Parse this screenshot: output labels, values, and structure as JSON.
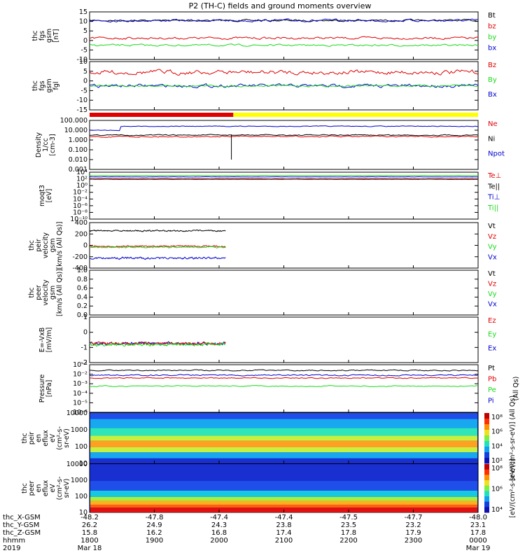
{
  "title": "P2 (TH-C) fields and ground moments overview",
  "colors": {
    "black": "#000000",
    "red": "#e00000",
    "green": "#19d919",
    "blue": "#0000d0"
  },
  "chart_data": [
    {
      "type": "line",
      "ylabel": [
        "thc",
        "fgs",
        "gsm",
        "[nT]"
      ],
      "ylim": [
        -10,
        15
      ],
      "yticks": [
        15,
        10,
        5,
        0,
        -5,
        -10
      ],
      "series": [
        {
          "name": "Bt",
          "color": "#000000",
          "level": 8,
          "noise": 1.2
        },
        {
          "name": "bz",
          "color": "#e00000",
          "level": 1,
          "noise": 1.5
        },
        {
          "name": "by",
          "color": "#19d919",
          "level": -3,
          "noise": 1.0
        },
        {
          "name": "bx",
          "color": "#0000d0",
          "level": 7,
          "noise": 2.0
        }
      ]
    },
    {
      "type": "line",
      "ylabel": [
        "thc",
        "fgs",
        "gsm",
        "fgl"
      ],
      "ylim": [
        -17,
        12
      ],
      "yticks": [
        10,
        5,
        0,
        -5,
        -10,
        -15
      ],
      "series": [
        {
          "name": "Bz",
          "color": "#e00000",
          "level": 3,
          "noise": 3.0
        },
        {
          "name": "By",
          "color": "#19d919",
          "level": -1,
          "noise": 1.2
        },
        {
          "name": "Bx",
          "color": "#0000d0",
          "level": -1,
          "noise": 2.0
        }
      ]
    },
    {
      "type": "line",
      "ylabel": [
        "Density",
        "1/cc",
        "[cm-3]"
      ],
      "log": true,
      "ylim": [
        0.001,
        100
      ],
      "yticks": [
        "100.000",
        "10.000",
        "1.000",
        "0.100",
        "0.010",
        "0.001"
      ],
      "series": [
        {
          "name": "Ne",
          "color": "#e00000",
          "level": 2.0
        },
        {
          "name": "Ni",
          "color": "#000000",
          "level": 2.5
        },
        {
          "name": "Npot",
          "color": "#0000d0",
          "level": 8.0
        }
      ]
    },
    {
      "type": "line",
      "ylabel": [
        "moqt3",
        "[eV]"
      ],
      "log": true,
      "yticks": [
        "10⁴",
        "10²",
        "10⁰",
        "10⁻²",
        "10⁻⁴",
        "10⁻⁶",
        "10⁻⁸",
        "10⁻¹⁰"
      ],
      "series": [
        {
          "name": "Te⊥",
          "color": "#e00000"
        },
        {
          "name": "Te||",
          "color": "#000000"
        },
        {
          "name": "Ti⊥",
          "color": "#0000d0"
        },
        {
          "name": "Ti||",
          "color": "#19d919"
        }
      ]
    },
    {
      "type": "line",
      "ylabel": [
        "thc",
        "peir",
        "velocity",
        "gsm",
        "[km/s (All Qs)]"
      ],
      "ylim": [
        -400,
        400
      ],
      "yticks": [
        400,
        200,
        0,
        -200,
        -400
      ],
      "series": [
        {
          "name": "Vt",
          "color": "#000000",
          "level": 250
        },
        {
          "name": "Vz",
          "color": "#e00000",
          "level": 0
        },
        {
          "name": "Vy",
          "color": "#19d919",
          "level": -20
        },
        {
          "name": "Vx",
          "color": "#0000d0",
          "level": -200
        }
      ]
    },
    {
      "type": "line",
      "ylabel": [
        "thc",
        "peer",
        "velocity",
        "gsm",
        "[km/s (All Qs)]"
      ],
      "ylim": [
        0,
        1
      ],
      "yticks": [
        "1.0",
        "0.8",
        "0.6",
        "0.4",
        "0.2",
        "0.0"
      ],
      "series": [
        {
          "name": "Vt",
          "color": "#000000"
        },
        {
          "name": "Vz",
          "color": "#e00000"
        },
        {
          "name": "Vy",
          "color": "#19d919"
        },
        {
          "name": "Vx",
          "color": "#0000d0"
        }
      ]
    },
    {
      "type": "line",
      "ylabel": [
        "E=-VxB",
        "[mV/m]"
      ],
      "ylim": [
        -2,
        1.5
      ],
      "yticks": [
        "1",
        "0",
        "-1",
        "-2"
      ],
      "series": [
        {
          "name": "Ez",
          "color": "#e00000"
        },
        {
          "name": "Ey",
          "color": "#19d919"
        },
        {
          "name": "Ex",
          "color": "#0000d0"
        }
      ]
    },
    {
      "type": "line",
      "ylabel": [
        "Pressure",
        "[nPa]"
      ],
      "log": true,
      "yticks": [
        "10⁻¹",
        "10⁻²",
        "10⁻³",
        "10⁻⁴",
        "10⁻⁵",
        "10⁻⁶"
      ],
      "series": [
        {
          "name": "Pt",
          "color": "#000000"
        },
        {
          "name": "Pb",
          "color": "#e00000"
        },
        {
          "name": "Pe",
          "color": "#19d919"
        },
        {
          "name": "Pi",
          "color": "#0000d0"
        }
      ],
      "note": "(All Qs)"
    },
    {
      "type": "heatmap",
      "ylabel": [
        "thc",
        "peir",
        "en",
        "eflux",
        "eV",
        "(cm²-s-",
        "sr-eV)"
      ],
      "yticks": [
        "10000",
        "1000",
        "100",
        "10"
      ],
      "colorbar_ticks": [
        "10⁸",
        "10⁶",
        "10⁴",
        "10²"
      ],
      "colorbar_label": "[eV/(cm²-s-sr-eV)] (All Qs)"
    },
    {
      "type": "heatmap",
      "ylabel": [
        "thc",
        "peer",
        "en",
        "eflux",
        "eV",
        "(cm²-s-",
        "sr-eV)"
      ],
      "yticks": [
        "10000",
        "1000",
        "100",
        "10"
      ],
      "colorbar_ticks": [
        "10⁸",
        "10⁶",
        "10⁴"
      ],
      "colorbar_label": "[eV/(cm²-s-sr-eV)]"
    }
  ],
  "xaxis": {
    "rows": [
      {
        "label": "thc_X-GSM",
        "values": [
          "-48.2",
          "-47.8",
          "-47.4",
          "-47.4",
          "-47.5",
          "-47.7",
          "-48.0"
        ]
      },
      {
        "label": "thc_Y-GSM",
        "values": [
          "26.2",
          "24.9",
          "24.3",
          "23.8",
          "23.5",
          "23.2",
          "23.1"
        ]
      },
      {
        "label": "thc_Z-GSM",
        "values": [
          "15.8",
          "16.2",
          "16.8",
          "17.4",
          "17.8",
          "17.9",
          "17.8"
        ]
      },
      {
        "label": "hhmm",
        "values": [
          "1800",
          "1900",
          "2000",
          "2100",
          "2200",
          "2300",
          "0000"
        ]
      },
      {
        "label": "2019",
        "values": [
          "Mar 18",
          "",
          "",
          "",
          "",
          "",
          "Mar 19"
        ]
      }
    ]
  },
  "mode_bar": {
    "colors": [
      "#e00000",
      "#ffff00"
    ],
    "split": 0.37
  }
}
